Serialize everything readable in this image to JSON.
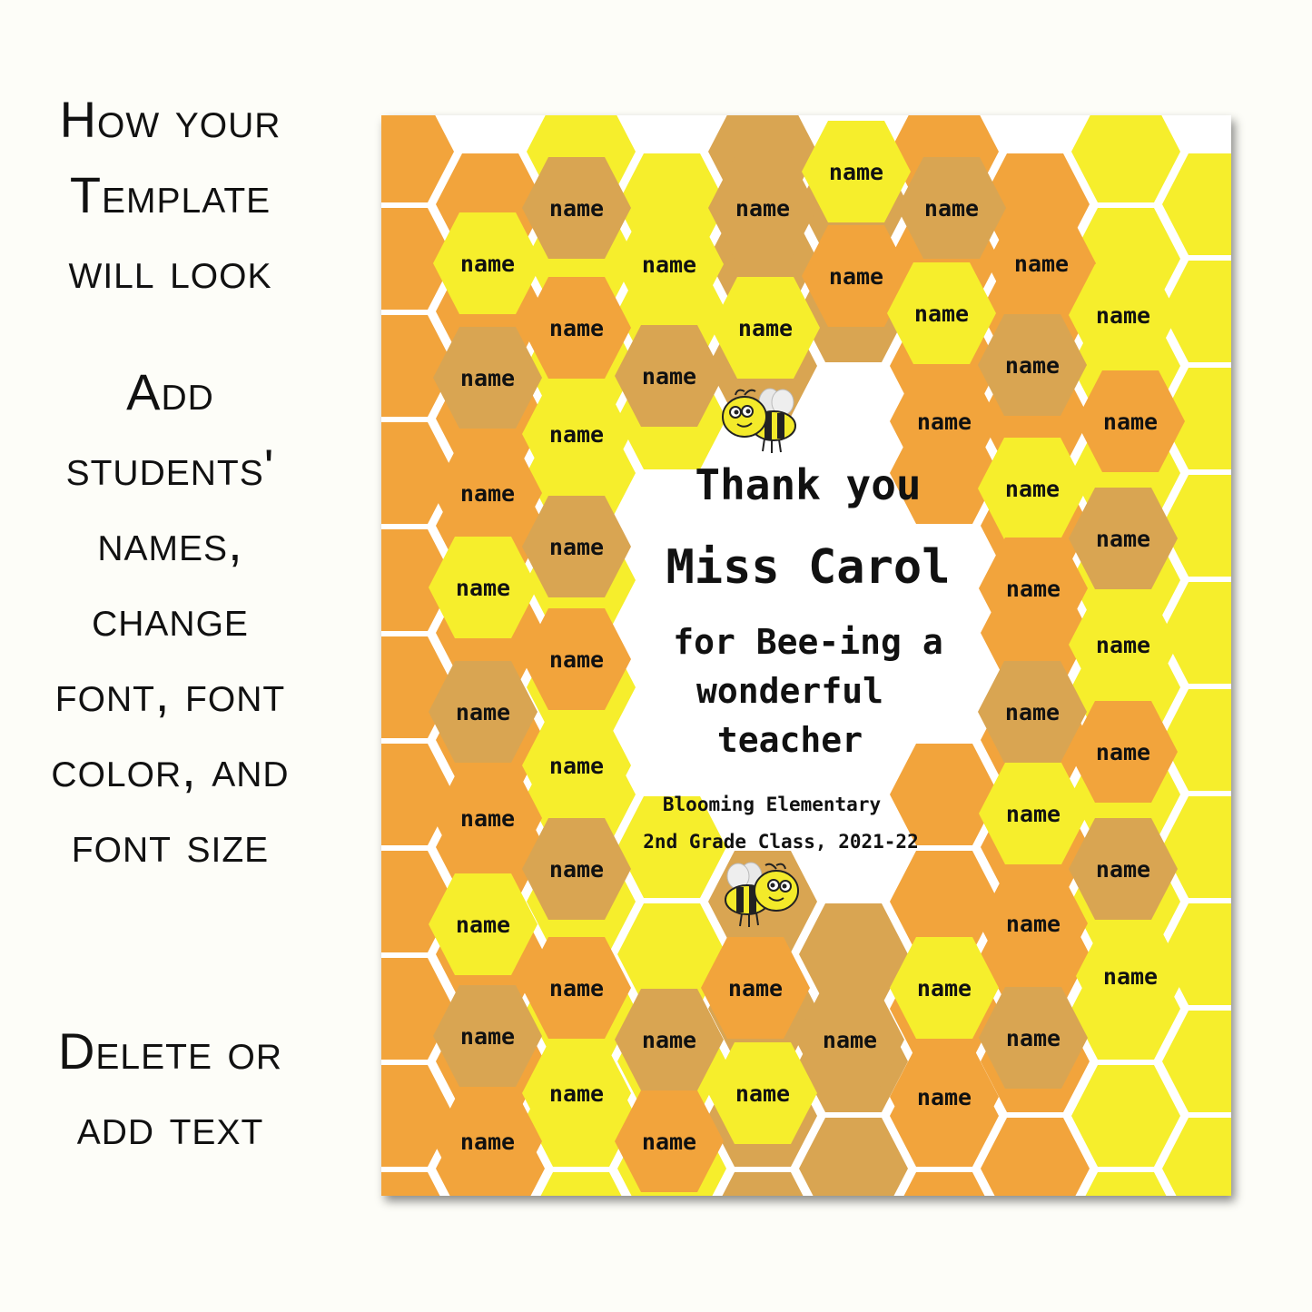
{
  "instructions": {
    "block1": [
      "How your",
      "Template",
      "will look"
    ],
    "block2": [
      "Add",
      "students'",
      "names,",
      "change",
      "font, font",
      "color, and",
      "font size"
    ],
    "block3": [
      "Delete or",
      "add text"
    ]
  },
  "poster": {
    "title_line1": "Thank you",
    "title_line2": "Miss Carol",
    "subtitle_line1": "for Bee-ing a",
    "subtitle_line2": "wonderful",
    "subtitle_line3": "teacher",
    "school": "Blooming Elementary",
    "class_info": "2nd Grade Class, 2021-22",
    "name_placeholder": "name",
    "name_count": 49,
    "colors": {
      "yellow": "#f6ee2c",
      "orange": "#f2a43c",
      "tan": "#d9a552",
      "background": "#ffffff"
    },
    "decorations": [
      "bee-icon-top",
      "bee-icon-bottom"
    ]
  }
}
